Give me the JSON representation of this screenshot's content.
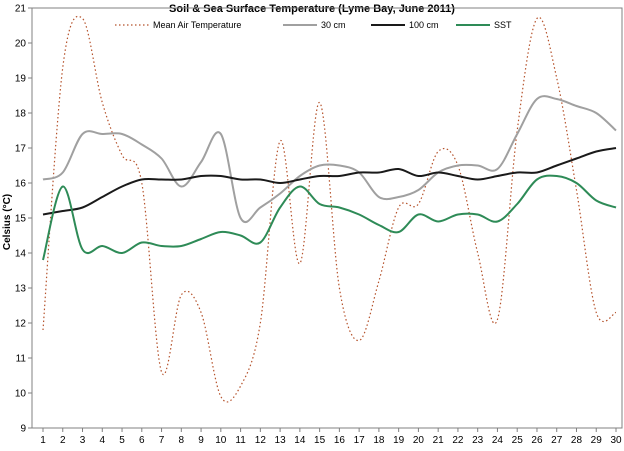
{
  "chart_data": {
    "type": "line",
    "title": "Soil & Sea Surface Temperature (Lyme Bay, June 2011)",
    "xlabel": "",
    "ylabel": "Celsius (°C)",
    "ylim": [
      9,
      21
    ],
    "yticks": [
      9,
      10,
      11,
      12,
      13,
      14,
      15,
      16,
      17,
      18,
      19,
      20,
      21
    ],
    "xlim": [
      1,
      30
    ],
    "x": [
      1,
      2,
      3,
      4,
      5,
      6,
      7,
      8,
      9,
      10,
      11,
      12,
      13,
      14,
      15,
      16,
      17,
      18,
      19,
      20,
      21,
      22,
      23,
      24,
      25,
      26,
      27,
      28,
      29,
      30
    ],
    "grid": false,
    "legend": "top",
    "series": [
      {
        "name": "Mean Air Temperature",
        "color": "#b5522b",
        "style": "dotted",
        "values": [
          11.8,
          19.3,
          20.7,
          18.3,
          16.8,
          16.0,
          10.6,
          12.8,
          12.3,
          9.9,
          10.2,
          12.0,
          17.2,
          13.7,
          18.3,
          13.0,
          11.5,
          13.2,
          15.3,
          15.4,
          16.9,
          16.5,
          14.0,
          12.1,
          17.5,
          20.7,
          19.0,
          15.8,
          12.3,
          12.3
        ]
      },
      {
        "name": "30 cm",
        "color": "#a0a0a0",
        "style": "solid",
        "values": [
          16.1,
          16.3,
          17.4,
          17.4,
          17.4,
          17.1,
          16.7,
          15.9,
          16.6,
          17.4,
          15.0,
          15.3,
          15.7,
          16.2,
          16.5,
          16.5,
          16.3,
          15.6,
          15.6,
          15.8,
          16.3,
          16.5,
          16.5,
          16.4,
          17.4,
          18.4,
          18.4,
          18.2,
          18.0,
          17.5
        ]
      },
      {
        "name": "100 cm",
        "color": "#1a1a1a",
        "style": "solid",
        "values": [
          15.1,
          15.2,
          15.3,
          15.6,
          15.9,
          16.1,
          16.1,
          16.1,
          16.2,
          16.2,
          16.1,
          16.1,
          16.0,
          16.1,
          16.2,
          16.2,
          16.3,
          16.3,
          16.4,
          16.2,
          16.3,
          16.2,
          16.1,
          16.2,
          16.3,
          16.3,
          16.5,
          16.7,
          16.9,
          17.0
        ]
      },
      {
        "name": "SST",
        "color": "#2e8b57",
        "style": "solid",
        "values": [
          13.8,
          15.9,
          14.1,
          14.2,
          14.0,
          14.3,
          14.2,
          14.2,
          14.4,
          14.6,
          14.5,
          14.3,
          15.3,
          15.9,
          15.4,
          15.3,
          15.1,
          14.8,
          14.6,
          15.1,
          14.9,
          15.1,
          15.1,
          14.9,
          15.4,
          16.1,
          16.2,
          16.0,
          15.5,
          15.3
        ]
      }
    ]
  }
}
